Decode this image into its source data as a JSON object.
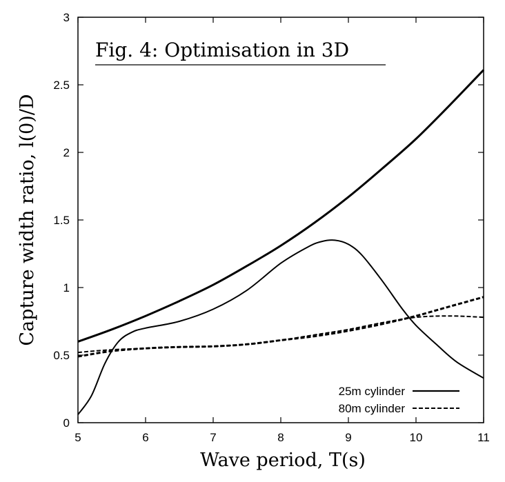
{
  "chart_data": {
    "type": "line",
    "title": "Fig. 4: Optimisation in 3D",
    "xlabel": "Wave period, T(s)",
    "ylabel": "Capture width ratio, l(0)/D",
    "xlim": [
      5,
      11
    ],
    "ylim": [
      0,
      3
    ],
    "xticks": [
      "5",
      "6",
      "7",
      "8",
      "9",
      "10",
      "11"
    ],
    "yticks": [
      "0",
      "0.5",
      "1",
      "1.5",
      "2",
      "2.5",
      "3"
    ],
    "grid": false,
    "legend": {
      "placement": "bottom-right",
      "entries": [
        "25m cylinder",
        "80m cylinder"
      ]
    },
    "series": [
      {
        "name": "25m cylinder",
        "style": "solid",
        "width": "thick",
        "x": [
          5.0,
          5.5,
          6.0,
          6.5,
          7.0,
          7.5,
          8.0,
          8.5,
          9.0,
          9.5,
          10.0,
          10.5,
          11.0
        ],
        "y": [
          0.6,
          0.69,
          0.79,
          0.9,
          1.02,
          1.16,
          1.31,
          1.48,
          1.67,
          1.88,
          2.1,
          2.35,
          2.61
        ]
      },
      {
        "name": "25m cylinder",
        "style": "solid",
        "width": "thin",
        "x": [
          5.0,
          5.2,
          5.4,
          5.6,
          5.8,
          6.0,
          6.5,
          7.0,
          7.5,
          8.0,
          8.4,
          8.6,
          8.8,
          9.0,
          9.2,
          9.5,
          9.8,
          10.0,
          10.3,
          10.6,
          11.0
        ],
        "y": [
          0.06,
          0.2,
          0.44,
          0.6,
          0.67,
          0.7,
          0.75,
          0.84,
          0.98,
          1.18,
          1.3,
          1.34,
          1.35,
          1.32,
          1.24,
          1.05,
          0.84,
          0.72,
          0.58,
          0.45,
          0.33
        ]
      },
      {
        "name": "80m cylinder",
        "style": "dashed",
        "width": "thick",
        "x": [
          5.0,
          5.5,
          6.0,
          6.5,
          7.0,
          7.5,
          8.0,
          8.5,
          9.0,
          9.5,
          10.0,
          10.5,
          11.0
        ],
        "y": [
          0.49,
          0.53,
          0.55,
          0.56,
          0.565,
          0.58,
          0.61,
          0.64,
          0.68,
          0.73,
          0.79,
          0.86,
          0.93
        ]
      },
      {
        "name": "80m cylinder",
        "style": "dashed",
        "width": "thin",
        "x": [
          5.0,
          5.5,
          6.0,
          6.5,
          7.0,
          7.5,
          8.0,
          8.5,
          9.0,
          9.5,
          10.0,
          10.5,
          11.0
        ],
        "y": [
          0.52,
          0.54,
          0.55,
          0.56,
          0.565,
          0.58,
          0.61,
          0.65,
          0.69,
          0.74,
          0.78,
          0.79,
          0.78
        ]
      }
    ]
  }
}
